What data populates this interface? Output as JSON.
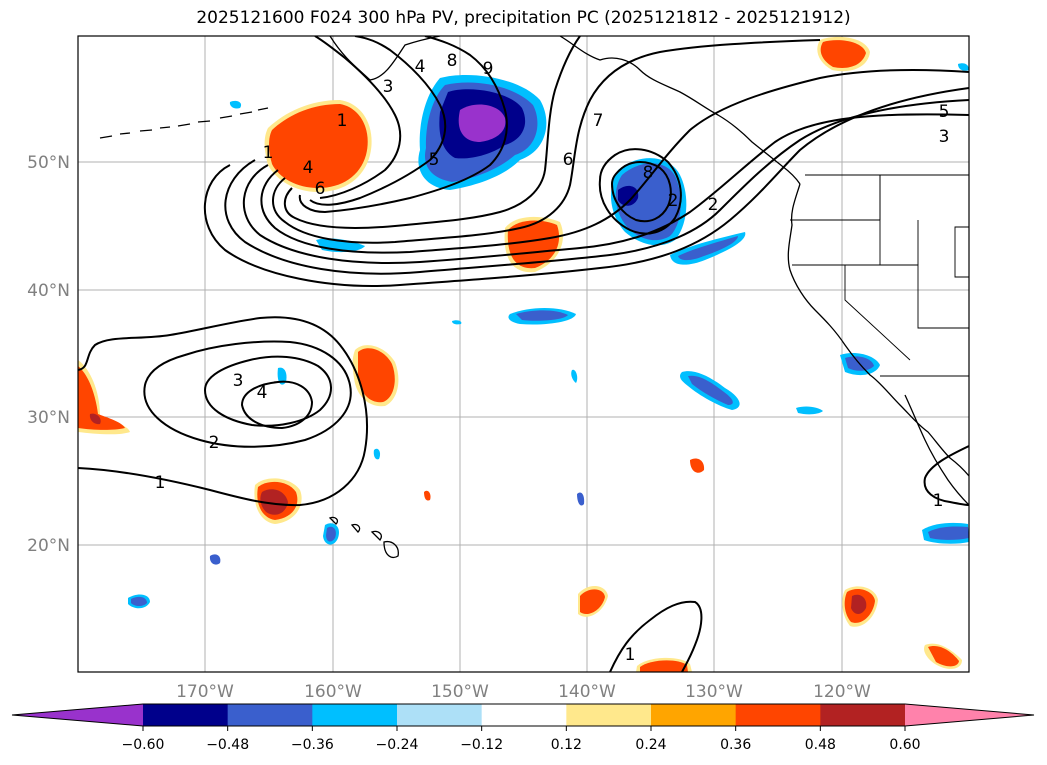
{
  "title": "2025121600 F024 300 hPa PV, precipitation PC (2025121812 - 2025121912)",
  "axes": {
    "lat_labels": [
      "50°N",
      "40°N",
      "30°N",
      "20°N"
    ],
    "lon_labels": [
      "170°W",
      "160°W",
      "150°W",
      "140°W",
      "130°W",
      "120°W"
    ]
  },
  "colorbar": {
    "colors": [
      "#9932CC",
      "#00008B",
      "#3A5FCD",
      "#00BFFF",
      "#ADE0F7",
      "#FFFFFF",
      "#FFE88C",
      "#FFA500",
      "#FF4500",
      "#B22222",
      "#FF82AB"
    ],
    "tick_labels": [
      "−0.60",
      "−0.48",
      "−0.36",
      "−0.24",
      "−0.12",
      "0.12",
      "0.24",
      "0.36",
      "0.48",
      "0.60"
    ]
  },
  "contour_labels": [
    "1",
    "2",
    "3",
    "4",
    "5",
    "6",
    "7",
    "8",
    "9",
    "5",
    "3",
    "2",
    "8",
    "1",
    "4",
    "6",
    "2",
    "3",
    "4",
    "1",
    "1",
    "1"
  ]
}
